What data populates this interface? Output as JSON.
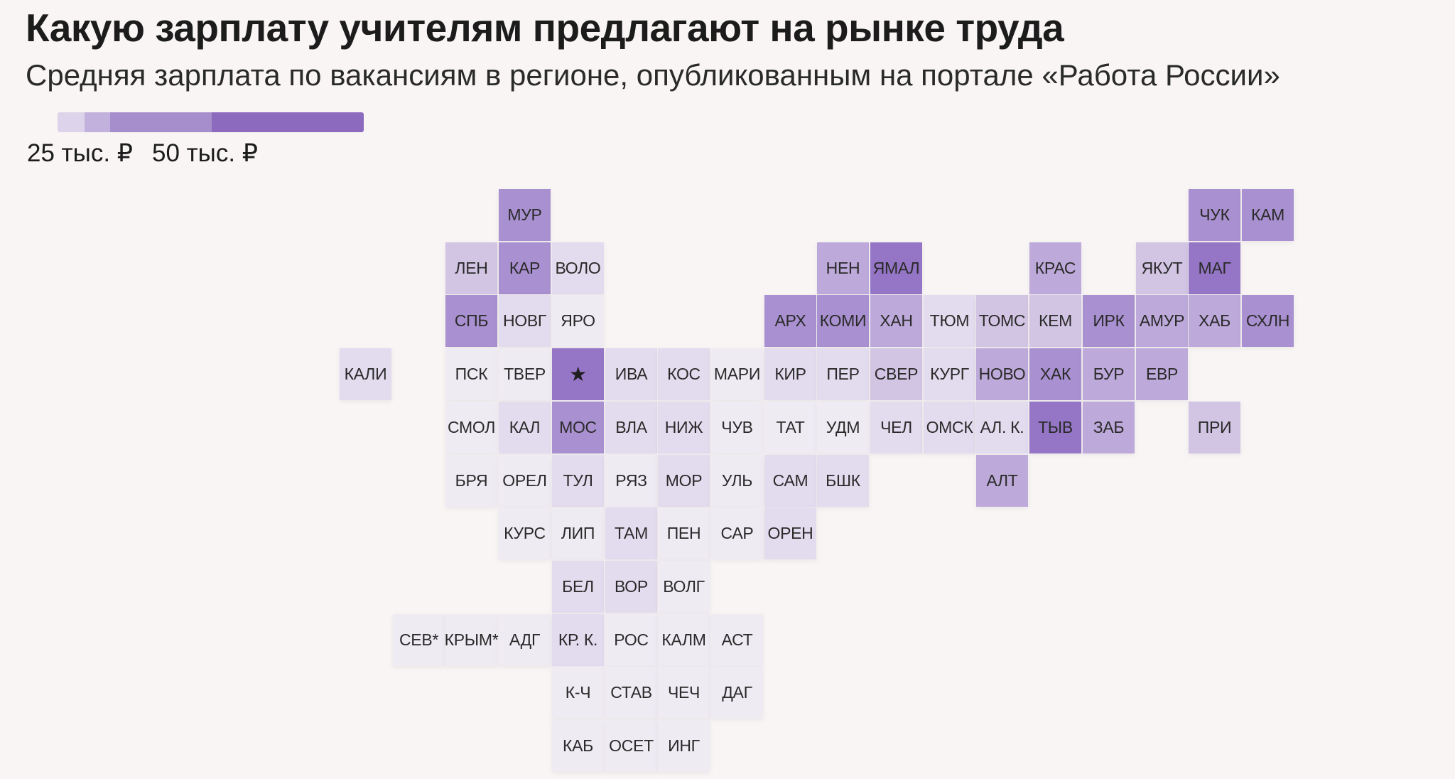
{
  "title": "Какую зарплату учителям предлагают на рынке труда",
  "subtitle": "Средняя зарплата по вакансиям в регионе, опубликованным на портале «Работа России»",
  "legend": {
    "min_label": "25 тыс. ₽",
    "max_label": "50 тыс. ₽",
    "segments": [
      {
        "color": "#ddd3ea"
      },
      {
        "color": "#c2b1dc"
      },
      {
        "color": "#a68ecd"
      },
      {
        "color": "#8c6bbf"
      }
    ]
  },
  "colors": {
    "background": "#f8f5f4",
    "level_0": "#efebf3",
    "level_1": "#e3dbee",
    "level_2": "#d2c5e4",
    "level_3": "#bda9da",
    "level_4": "#a990d0",
    "level_5": "#9576c6"
  },
  "regions": [
    {
      "label": "МУР",
      "col": 3,
      "row": 0,
      "level": 4
    },
    {
      "label": "ЧУК",
      "col": 16,
      "row": 0,
      "level": 4
    },
    {
      "label": "КАМ",
      "col": 17,
      "row": 0,
      "level": 4
    },
    {
      "label": "ЛЕН",
      "col": 2,
      "row": 1,
      "level": 2
    },
    {
      "label": "КАР",
      "col": 3,
      "row": 1,
      "level": 4
    },
    {
      "label": "ВОЛО",
      "col": 4,
      "row": 1,
      "level": 1
    },
    {
      "label": "НЕН",
      "col": 9,
      "row": 1,
      "level": 3
    },
    {
      "label": "ЯМАЛ",
      "col": 10,
      "row": 1,
      "level": 5
    },
    {
      "label": "КРАС",
      "col": 13,
      "row": 1,
      "level": 3
    },
    {
      "label": "ЯКУТ",
      "col": 15,
      "row": 1,
      "level": 2
    },
    {
      "label": "МАГ",
      "col": 16,
      "row": 1,
      "level": 5
    },
    {
      "label": "СПБ",
      "col": 2,
      "row": 2,
      "level": 4
    },
    {
      "label": "НОВГ",
      "col": 3,
      "row": 2,
      "level": 1
    },
    {
      "label": "ЯРО",
      "col": 4,
      "row": 2,
      "level": 0
    },
    {
      "label": "АРХ",
      "col": 8,
      "row": 2,
      "level": 4
    },
    {
      "label": "КОМИ",
      "col": 9,
      "row": 2,
      "level": 4
    },
    {
      "label": "ХАН",
      "col": 10,
      "row": 2,
      "level": 3
    },
    {
      "label": "ТЮМ",
      "col": 11,
      "row": 2,
      "level": 1
    },
    {
      "label": "ТОМС",
      "col": 12,
      "row": 2,
      "level": 2
    },
    {
      "label": "КЕМ",
      "col": 13,
      "row": 2,
      "level": 2
    },
    {
      "label": "ИРК",
      "col": 14,
      "row": 2,
      "level": 4
    },
    {
      "label": "АМУР",
      "col": 15,
      "row": 2,
      "level": 3
    },
    {
      "label": "ХАБ",
      "col": 16,
      "row": 2,
      "level": 3
    },
    {
      "label": "СХЛН",
      "col": 17,
      "row": 2,
      "level": 4
    },
    {
      "label": "КАЛИ",
      "col": 0,
      "row": 3,
      "level": 1
    },
    {
      "label": "ПСК",
      "col": 2,
      "row": 3,
      "level": 0
    },
    {
      "label": "ТВЕР",
      "col": 3,
      "row": 3,
      "level": 0
    },
    {
      "label": "★",
      "col": 4,
      "row": 3,
      "level": 5,
      "star": true
    },
    {
      "label": "ИВА",
      "col": 5,
      "row": 3,
      "level": 1
    },
    {
      "label": "КОС",
      "col": 6,
      "row": 3,
      "level": 1
    },
    {
      "label": "МАРИ",
      "col": 7,
      "row": 3,
      "level": 0
    },
    {
      "label": "КИР",
      "col": 8,
      "row": 3,
      "level": 1
    },
    {
      "label": "ПЕР",
      "col": 9,
      "row": 3,
      "level": 1
    },
    {
      "label": "СВЕР",
      "col": 10,
      "row": 3,
      "level": 2
    },
    {
      "label": "КУРГ",
      "col": 11,
      "row": 3,
      "level": 1
    },
    {
      "label": "НОВО",
      "col": 12,
      "row": 3,
      "level": 3
    },
    {
      "label": "ХАК",
      "col": 13,
      "row": 3,
      "level": 4
    },
    {
      "label": "БУР",
      "col": 14,
      "row": 3,
      "level": 3
    },
    {
      "label": "ЕВР",
      "col": 15,
      "row": 3,
      "level": 3
    },
    {
      "label": "СМОЛ",
      "col": 2,
      "row": 4,
      "level": 0
    },
    {
      "label": "КАЛ",
      "col": 3,
      "row": 4,
      "level": 1
    },
    {
      "label": "МОС",
      "col": 4,
      "row": 4,
      "level": 4
    },
    {
      "label": "ВЛА",
      "col": 5,
      "row": 4,
      "level": 1
    },
    {
      "label": "НИЖ",
      "col": 6,
      "row": 4,
      "level": 1
    },
    {
      "label": "ЧУВ",
      "col": 7,
      "row": 4,
      "level": 0
    },
    {
      "label": "ТАТ",
      "col": 8,
      "row": 4,
      "level": 0
    },
    {
      "label": "УДМ",
      "col": 9,
      "row": 4,
      "level": 0
    },
    {
      "label": "ЧЕЛ",
      "col": 10,
      "row": 4,
      "level": 1
    },
    {
      "label": "ОМСК",
      "col": 11,
      "row": 4,
      "level": 1
    },
    {
      "label": "АЛ. К.",
      "col": 12,
      "row": 4,
      "level": 1
    },
    {
      "label": "ТЫВ",
      "col": 13,
      "row": 4,
      "level": 5
    },
    {
      "label": "ЗАБ",
      "col": 14,
      "row": 4,
      "level": 3
    },
    {
      "label": "ПРИ",
      "col": 16,
      "row": 4,
      "level": 2
    },
    {
      "label": "БРЯ",
      "col": 2,
      "row": 5,
      "level": 0
    },
    {
      "label": "ОРЕЛ",
      "col": 3,
      "row": 5,
      "level": 0
    },
    {
      "label": "ТУЛ",
      "col": 4,
      "row": 5,
      "level": 1
    },
    {
      "label": "РЯЗ",
      "col": 5,
      "row": 5,
      "level": 0
    },
    {
      "label": "МОР",
      "col": 6,
      "row": 5,
      "level": 1
    },
    {
      "label": "УЛЬ",
      "col": 7,
      "row": 5,
      "level": 0
    },
    {
      "label": "САМ",
      "col": 8,
      "row": 5,
      "level": 1
    },
    {
      "label": "БШК",
      "col": 9,
      "row": 5,
      "level": 1
    },
    {
      "label": "АЛТ",
      "col": 12,
      "row": 5,
      "level": 3
    },
    {
      "label": "КУРС",
      "col": 3,
      "row": 6,
      "level": 0
    },
    {
      "label": "ЛИП",
      "col": 4,
      "row": 6,
      "level": 0
    },
    {
      "label": "ТАМ",
      "col": 5,
      "row": 6,
      "level": 1
    },
    {
      "label": "ПЕН",
      "col": 6,
      "row": 6,
      "level": 0
    },
    {
      "label": "САР",
      "col": 7,
      "row": 6,
      "level": 0
    },
    {
      "label": "ОРЕН",
      "col": 8,
      "row": 6,
      "level": 1
    },
    {
      "label": "БЕЛ",
      "col": 4,
      "row": 7,
      "level": 1
    },
    {
      "label": "ВОР",
      "col": 5,
      "row": 7,
      "level": 1
    },
    {
      "label": "ВОЛГ",
      "col": 6,
      "row": 7,
      "level": 0
    },
    {
      "label": "СЕВ*",
      "col": 1,
      "row": 8,
      "level": 0
    },
    {
      "label": "КРЫМ*",
      "col": 2,
      "row": 8,
      "level": 0
    },
    {
      "label": "АДГ",
      "col": 3,
      "row": 8,
      "level": 0
    },
    {
      "label": "КР. К.",
      "col": 4,
      "row": 8,
      "level": 1
    },
    {
      "label": "РОС",
      "col": 5,
      "row": 8,
      "level": 0
    },
    {
      "label": "КАЛМ",
      "col": 6,
      "row": 8,
      "level": 0
    },
    {
      "label": "АСТ",
      "col": 7,
      "row": 8,
      "level": 0
    },
    {
      "label": "К-Ч",
      "col": 4,
      "row": 9,
      "level": 0
    },
    {
      "label": "СТАВ",
      "col": 5,
      "row": 9,
      "level": 0
    },
    {
      "label": "ЧЕЧ",
      "col": 6,
      "row": 9,
      "level": 0
    },
    {
      "label": "ДАГ",
      "col": 7,
      "row": 9,
      "level": 0
    },
    {
      "label": "КАБ",
      "col": 4,
      "row": 10,
      "level": 0
    },
    {
      "label": "ОСЕТ",
      "col": 5,
      "row": 10,
      "level": 0
    },
    {
      "label": "ИНГ",
      "col": 6,
      "row": 10,
      "level": 0
    }
  ]
}
